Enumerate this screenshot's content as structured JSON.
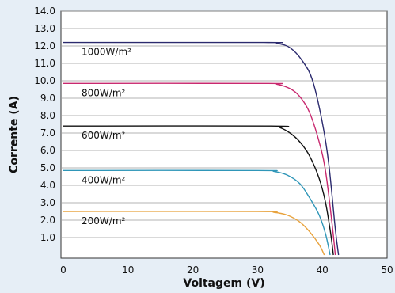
{
  "chart_data": {
    "type": "line",
    "title": "",
    "xlabel": "Voltagem (V)",
    "ylabel": "Corrente (A)",
    "xlim": [
      0,
      50
    ],
    "ylim": [
      0,
      14
    ],
    "x_ticks": [
      0,
      10,
      20,
      30,
      40,
      50
    ],
    "x_tick_labels": [
      "0",
      "10",
      "20",
      "30",
      "40",
      "50"
    ],
    "y_ticks": [
      1,
      2,
      3,
      4,
      5,
      6,
      7,
      8,
      9,
      10,
      11,
      12,
      13,
      14
    ],
    "y_tick_labels": [
      "1.0",
      "2.0",
      "3.0",
      "4.0",
      "5.0",
      "6.0",
      "7.0",
      "8.0",
      "9.0",
      "10.0",
      "11.0",
      "12.0",
      "13.0",
      "14.0"
    ],
    "grid": "horizontal",
    "legend": "inline labels",
    "series": [
      {
        "name": "1000W/m²",
        "color": "#2b2a6e",
        "x": [
          0,
          31,
          33,
          35,
          37,
          38.5,
          40,
          41,
          42,
          42.5
        ],
        "y": [
          12.2,
          12.2,
          12.15,
          11.9,
          11.1,
          10.0,
          7.6,
          5.2,
          1.5,
          0
        ]
      },
      {
        "name": "800W/m²",
        "color": "#c8286e",
        "x": [
          0,
          31,
          33,
          35,
          36.5,
          38,
          39.5,
          40.5,
          41.5,
          42
        ],
        "y": [
          9.85,
          9.85,
          9.8,
          9.55,
          9.1,
          8.2,
          6.5,
          4.8,
          1.8,
          0
        ]
      },
      {
        "name": "600W/m²",
        "color": "#111111",
        "x": [
          0,
          32,
          33.5,
          35,
          36.5,
          38,
          39.5,
          40.5,
          41.3,
          41.7
        ],
        "y": [
          7.4,
          7.4,
          7.3,
          7.0,
          6.5,
          5.7,
          4.4,
          3.0,
          1.2,
          0
        ]
      },
      {
        "name": "400W/m²",
        "color": "#2f96b8",
        "x": [
          0,
          30,
          32.5,
          34.5,
          36.5,
          38,
          39.5,
          40.5,
          41.2
        ],
        "y": [
          4.85,
          4.85,
          4.8,
          4.6,
          4.1,
          3.3,
          2.3,
          1.2,
          0
        ]
      },
      {
        "name": "200W/m²",
        "color": "#e8a23c",
        "x": [
          0,
          30,
          32.5,
          34.5,
          36.5,
          38,
          39.5,
          40.3
        ],
        "y": [
          2.5,
          2.5,
          2.45,
          2.3,
          1.9,
          1.35,
          0.6,
          0
        ]
      }
    ]
  }
}
